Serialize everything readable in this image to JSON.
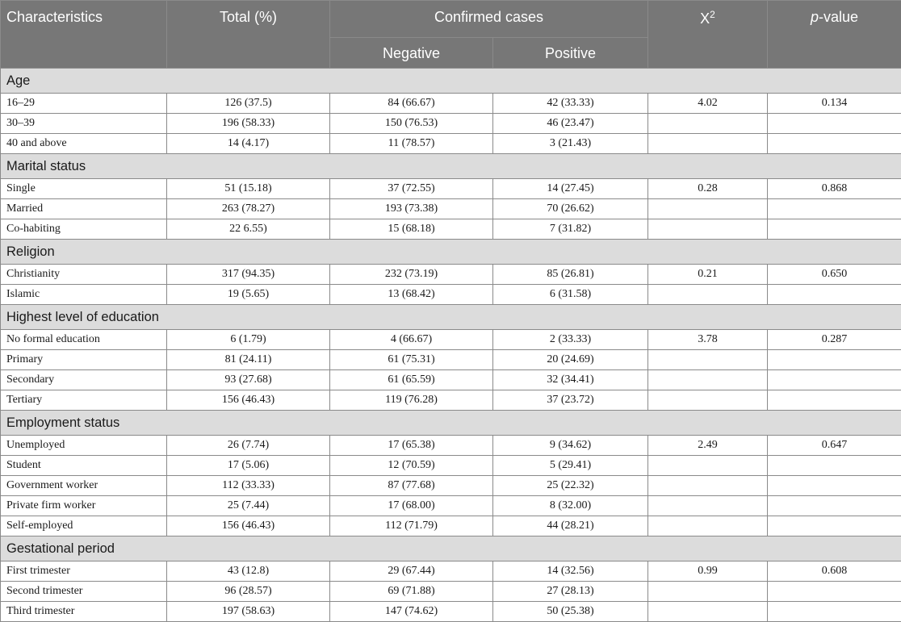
{
  "header": {
    "characteristics": "Characteristics",
    "total": "Total (%)",
    "confirmed": "Confirmed cases",
    "negative": "Negative",
    "positive": "Positive",
    "chi_base": "X",
    "chi_sup": "2",
    "p_italic": "p",
    "p_rest": "-value"
  },
  "groups": [
    {
      "title": "Age",
      "rows": [
        {
          "label": "16–29",
          "total": "126 (37.5)",
          "neg": "84 (66.67)",
          "pos": "42 (33.33)",
          "chi": "4.02",
          "p": "0.134"
        },
        {
          "label": "30–39",
          "total": "196 (58.33)",
          "neg": "150 (76.53)",
          "pos": "46 (23.47)",
          "chi": "",
          "p": ""
        },
        {
          "label": "40 and above",
          "total": "14 (4.17)",
          "neg": "11 (78.57)",
          "pos": "3 (21.43)",
          "chi": "",
          "p": ""
        }
      ]
    },
    {
      "title": "Marital status",
      "rows": [
        {
          "label": "Single",
          "total": "51 (15.18)",
          "neg": "37 (72.55)",
          "pos": "14 (27.45)",
          "chi": "0.28",
          "p": "0.868"
        },
        {
          "label": "Married",
          "total": "263 (78.27)",
          "neg": "193 (73.38)",
          "pos": "70 (26.62)",
          "chi": "",
          "p": ""
        },
        {
          "label": "Co-habiting",
          "total": "22 6.55)",
          "neg": "15 (68.18)",
          "pos": "7 (31.82)",
          "chi": "",
          "p": ""
        }
      ]
    },
    {
      "title": "Religion",
      "rows": [
        {
          "label": "Christianity",
          "total": "317 (94.35)",
          "neg": "232 (73.19)",
          "pos": "85 (26.81)",
          "chi": "0.21",
          "p": "0.650"
        },
        {
          "label": "Islamic",
          "total": "19 (5.65)",
          "neg": "13 (68.42)",
          "pos": "6 (31.58)",
          "chi": "",
          "p": ""
        }
      ]
    },
    {
      "title": "Highest level of education",
      "rows": [
        {
          "label": "No formal education",
          "total": "6 (1.79)",
          "neg": "4 (66.67)",
          "pos": "2 (33.33)",
          "chi": "3.78",
          "p": "0.287"
        },
        {
          "label": "Primary",
          "total": "81 (24.11)",
          "neg": "61 (75.31)",
          "pos": "20 (24.69)",
          "chi": "",
          "p": ""
        },
        {
          "label": "Secondary",
          "total": "93 (27.68)",
          "neg": "61 (65.59)",
          "pos": "32 (34.41)",
          "chi": "",
          "p": ""
        },
        {
          "label": "Tertiary",
          "total": "156 (46.43)",
          "neg": "119 (76.28)",
          "pos": "37 (23.72)",
          "chi": "",
          "p": ""
        }
      ]
    },
    {
      "title": "Employment status",
      "rows": [
        {
          "label": "Unemployed",
          "total": "26 (7.74)",
          "neg": "17 (65.38)",
          "pos": "9 (34.62)",
          "chi": "2.49",
          "p": "0.647"
        },
        {
          "label": "Student",
          "total": "17 (5.06)",
          "neg": "12 (70.59)",
          "pos": "5 (29.41)",
          "chi": "",
          "p": ""
        },
        {
          "label": "Government worker",
          "total": "112 (33.33)",
          "neg": "87 (77.68)",
          "pos": "25 (22.32)",
          "chi": "",
          "p": ""
        },
        {
          "label": "Private firm worker",
          "total": "25 (7.44)",
          "neg": "17 (68.00)",
          "pos": "8 (32.00)",
          "chi": "",
          "p": ""
        },
        {
          "label": "Self-employed",
          "total": "156 (46.43)",
          "neg": "112 (71.79)",
          "pos": "44 (28.21)",
          "chi": "",
          "p": ""
        }
      ]
    },
    {
      "title": "Gestational period",
      "rows": [
        {
          "label": "First trimester",
          "total": "43 (12.8)",
          "neg": "29 (67.44)",
          "pos": "14 (32.56)",
          "chi": "0.99",
          "p": "0.608"
        },
        {
          "label": "Second trimester",
          "total": "96 (28.57)",
          "neg": "69 (71.88)",
          "pos": "27 (28.13)",
          "chi": "",
          "p": ""
        },
        {
          "label": "Third trimester",
          "total": "197 (58.63)",
          "neg": "147 (74.62)",
          "pos": "50 (25.38)",
          "chi": "",
          "p": ""
        }
      ]
    }
  ]
}
